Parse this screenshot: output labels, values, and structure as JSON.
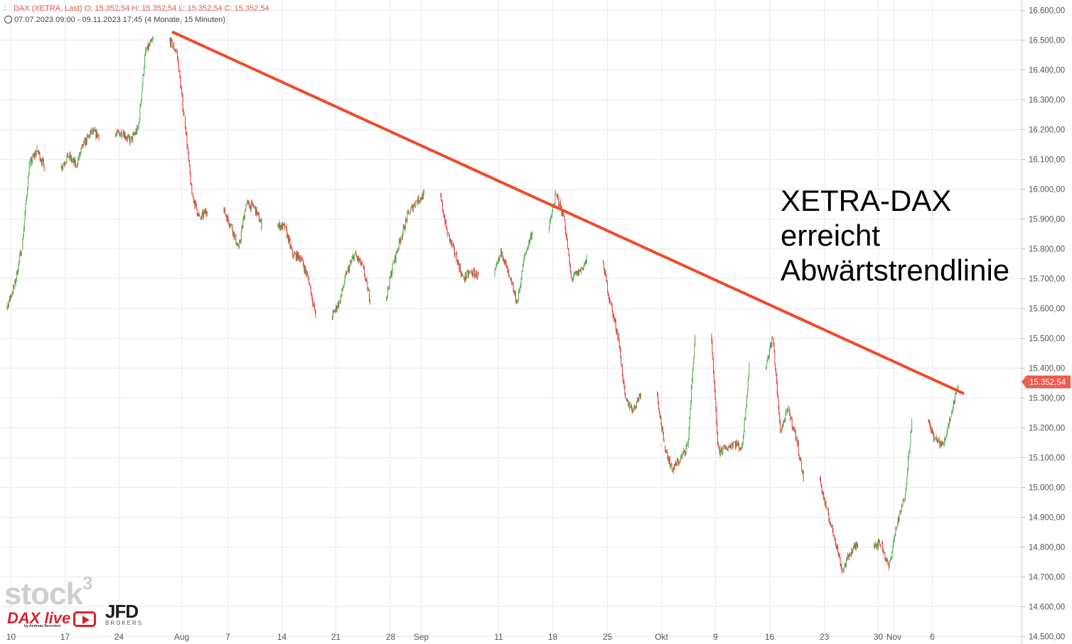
{
  "header": {
    "line1": "DAX (XETRA, Last)  O: 15.352,54  H: 15.352,54  L: 15.352,54  C: 15.352,54",
    "line2": "07.07.2023 09:00 - 09.11.2023 17:45   (4 Monate, 15 Minuten)"
  },
  "annotation": {
    "line1": "XETRA-DAX",
    "line2": "erreicht",
    "line3": "Abwärtstrendlinie"
  },
  "logos": {
    "stock3": "stock",
    "stock3_sup": "3",
    "daxlive": "DAX live",
    "daxlive_sub": "by Andreas Bernstein",
    "jfd": "JFD",
    "jfd_sub": "BROKERS"
  },
  "colors": {
    "up": "#4caf50",
    "down": "#e53935",
    "trendline": "#f04a2a",
    "price_tag": "#f05a4f",
    "grid": "#e9e9e9"
  },
  "chart_data": {
    "type": "line",
    "series_style": "candlestick",
    "ylim": [
      14500,
      16600
    ],
    "y_ticks": [
      "14.500,00",
      "14.600,00",
      "14.700,00",
      "14.800,00",
      "14.900,00",
      "15.000,00",
      "15.100,00",
      "15.200,00",
      "15.300,00",
      "15.400,00",
      "15.500,00",
      "15.600,00",
      "15.700,00",
      "15.800,00",
      "15.900,00",
      "16.000,00",
      "16.100,00",
      "16.200,00",
      "16.300,00",
      "16.400,00",
      "16.500,00",
      "16.600,00"
    ],
    "y_tick_values": [
      14500,
      14600,
      14700,
      14800,
      14900,
      15000,
      15100,
      15200,
      15300,
      15400,
      15500,
      15600,
      15700,
      15800,
      15900,
      16000,
      16100,
      16200,
      16300,
      16400,
      16500,
      16600
    ],
    "x_ticks": [
      "10",
      "17",
      "24",
      "Aug",
      "7",
      "14",
      "21",
      "28",
      "Sep",
      "11",
      "18",
      "25",
      "Okt",
      "9",
      "16",
      "23",
      "30",
      "Nov",
      "6"
    ],
    "x_tick_dates": [
      "2023-07-10",
      "2023-07-17",
      "2023-07-24",
      "2023-08-01",
      "2023-08-07",
      "2023-08-14",
      "2023-08-21",
      "2023-08-28",
      "2023-09-01",
      "2023-09-11",
      "2023-09-18",
      "2023-09-25",
      "2023-10-02",
      "2023-10-09",
      "2023-10-16",
      "2023-10-23",
      "2023-10-30",
      "2023-11-01",
      "2023-11-06"
    ],
    "last_price_label": "15.352,54",
    "last_price": 15352.54,
    "series": [
      {
        "x": [
          "2023-07-07",
          "2023-07-10",
          "2023-07-11",
          "2023-07-12",
          "2023-07-13",
          "2023-07-14",
          "2023-07-17",
          "2023-07-18",
          "2023-07-19",
          "2023-07-20",
          "2023-07-21",
          "2023-07-24",
          "2023-07-25",
          "2023-07-26",
          "2023-07-27",
          "2023-07-28",
          "2023-07-31",
          "2023-08-01",
          "2023-08-02",
          "2023-08-03",
          "2023-08-04",
          "2023-08-07",
          "2023-08-08",
          "2023-08-09",
          "2023-08-10",
          "2023-08-11",
          "2023-08-14",
          "2023-08-15",
          "2023-08-16",
          "2023-08-17",
          "2023-08-18",
          "2023-08-21",
          "2023-08-22",
          "2023-08-23",
          "2023-08-24",
          "2023-08-25",
          "2023-08-28",
          "2023-08-29",
          "2023-08-30",
          "2023-08-31",
          "2023-09-01",
          "2023-09-04",
          "2023-09-05",
          "2023-09-06",
          "2023-09-07",
          "2023-09-08",
          "2023-09-11",
          "2023-09-12",
          "2023-09-13",
          "2023-09-14",
          "2023-09-15",
          "2023-09-18",
          "2023-09-19",
          "2023-09-20",
          "2023-09-21",
          "2023-09-22",
          "2023-09-25",
          "2023-09-26",
          "2023-09-27",
          "2023-09-28",
          "2023-09-29",
          "2023-10-02",
          "2023-10-03",
          "2023-10-04",
          "2023-10-05",
          "2023-10-06",
          "2023-10-09",
          "2023-10-10",
          "2023-10-11",
          "2023-10-12",
          "2023-10-13",
          "2023-10-16",
          "2023-10-17",
          "2023-10-18",
          "2023-10-19",
          "2023-10-20",
          "2023-10-23",
          "2023-10-24",
          "2023-10-25",
          "2023-10-26",
          "2023-10-27",
          "2023-10-30",
          "2023-10-31",
          "2023-11-01",
          "2023-11-02",
          "2023-11-03",
          "2023-11-06",
          "2023-11-07",
          "2023-11-08",
          "2023-11-09"
        ],
        "values": [
          15600,
          15670,
          15800,
          16080,
          16130,
          16070,
          16110,
          16080,
          16150,
          16190,
          16180,
          16190,
          16160,
          16200,
          16460,
          16500,
          16460,
          16240,
          15980,
          15900,
          15930,
          15880,
          15800,
          15950,
          15940,
          15880,
          15870,
          15780,
          15770,
          15700,
          15570,
          15620,
          15720,
          15780,
          15740,
          15630,
          15750,
          15840,
          15920,
          15960,
          15980,
          15850,
          15780,
          15700,
          15720,
          15710,
          15790,
          15700,
          15620,
          15780,
          15860,
          15980,
          15910,
          15700,
          15720,
          15760,
          15620,
          15510,
          15290,
          15260,
          15320,
          15140,
          15060,
          15090,
          15140,
          15510,
          15120,
          15130,
          15150,
          15130,
          15400,
          15500,
          15190,
          15260,
          15170,
          15030,
          14920,
          14830,
          14720,
          14780,
          14810,
          14810,
          14730,
          14870,
          14960,
          15220,
          15160,
          15140,
          15240,
          15352.54
        ]
      }
    ],
    "trendline": {
      "from": {
        "x": "2023-07-31",
        "y": 16525
      },
      "to": {
        "x": "2023-11-10",
        "y": 15315
      }
    }
  }
}
